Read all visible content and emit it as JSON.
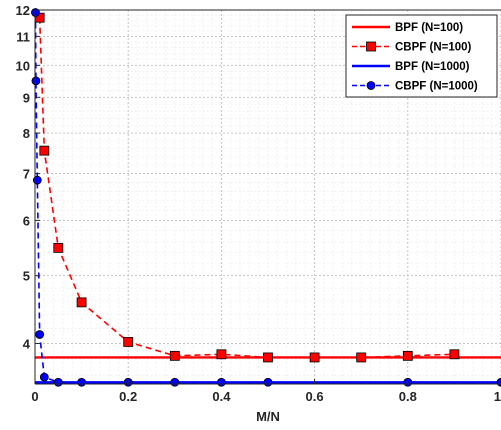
{
  "chart_data": {
    "type": "line",
    "xlabel": "M/N",
    "ylabel": "",
    "xlim": [
      0,
      1
    ],
    "ylim": [
      3.5,
      12
    ],
    "yscale": "log",
    "grid": true,
    "minor_grid": true,
    "legend_position": "top-right",
    "x_ticks": [
      "0",
      "0.2",
      "0.4",
      "0.6",
      "0.8",
      "1"
    ],
    "x_tick_values": [
      0,
      0.2,
      0.4,
      0.6,
      0.8,
      1
    ],
    "y_ticks": [
      "4",
      "5",
      "6",
      "7",
      "8",
      "9",
      "10",
      "11",
      "12"
    ],
    "y_tick_values": [
      4,
      5,
      6,
      7,
      8,
      9,
      10,
      11,
      12
    ],
    "series": [
      {
        "name": "BPF (N=100)",
        "color": "#ff0000",
        "style": "solid",
        "marker": "none",
        "x": [
          0,
          1
        ],
        "y": [
          3.82,
          3.82
        ]
      },
      {
        "name": "CBPF (N=100)",
        "color": "#ff0000",
        "style": "dashed",
        "marker": "square",
        "x": [
          0.01,
          0.02,
          0.05,
          0.1,
          0.2,
          0.3,
          0.4,
          0.5,
          0.6,
          0.7,
          0.8,
          0.9
        ],
        "y": [
          11.7,
          7.55,
          5.48,
          4.58,
          4.02,
          3.84,
          3.86,
          3.82,
          3.82,
          3.82,
          3.84,
          3.86
        ]
      },
      {
        "name": "BPF (N=1000)",
        "color": "#0000ff",
        "style": "solid",
        "marker": "none",
        "x": [
          0,
          1
        ],
        "y": [
          3.52,
          3.52
        ]
      },
      {
        "name": "CBPF (N=1000)",
        "color": "#0000ff",
        "style": "dashed",
        "marker": "circle",
        "x": [
          0.001,
          0.002,
          0.005,
          0.01,
          0.02,
          0.05,
          0.1,
          0.2,
          0.3,
          0.4,
          0.5,
          0.8,
          1.0
        ],
        "y": [
          11.9,
          9.5,
          6.85,
          4.12,
          3.58,
          3.52,
          3.52,
          3.52,
          3.52,
          3.52,
          3.52,
          3.52,
          3.52
        ]
      }
    ]
  }
}
